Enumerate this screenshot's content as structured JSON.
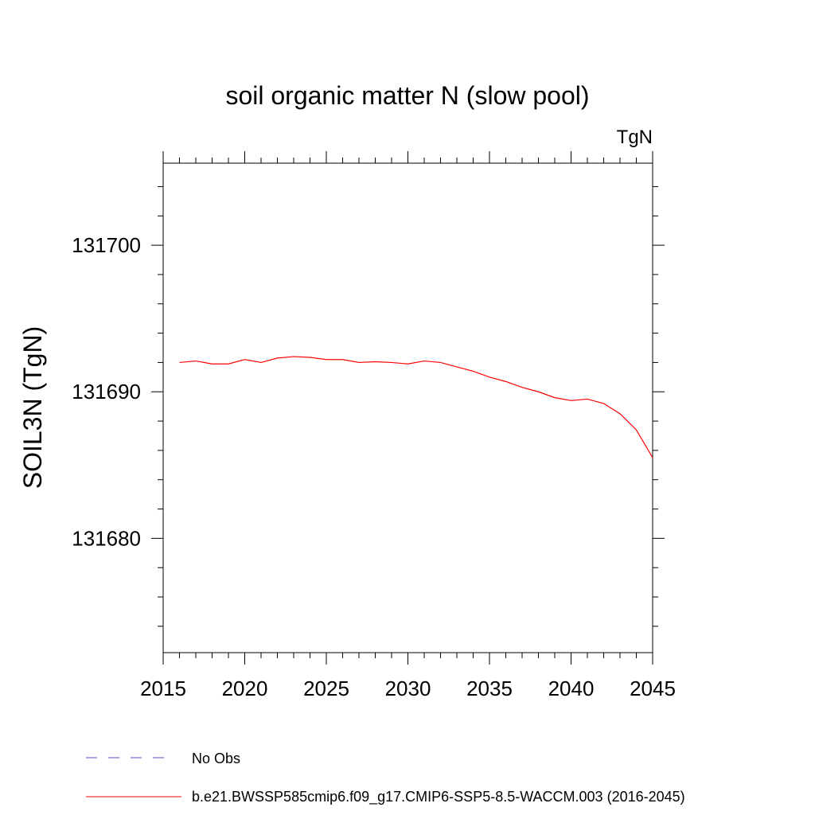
{
  "chart_data": {
    "type": "line",
    "title": "soil organic matter N (slow pool)",
    "units_label": "TgN",
    "ylabel": "SOIL3N  (TgN)",
    "xlabel": "",
    "xlim": [
      2015,
      2045
    ],
    "ylim": [
      131672.2,
      131705.6
    ],
    "x_ticks": [
      2015,
      2020,
      2025,
      2030,
      2035,
      2040,
      2045
    ],
    "x_tick_labels": [
      "2015",
      "2020",
      "2025",
      "2030",
      "2035",
      "2040",
      "2045"
    ],
    "x_minor_step": 1,
    "y_ticks": [
      131680,
      131690,
      131700
    ],
    "y_tick_labels": [
      "131680",
      "131690",
      "131700"
    ],
    "y_minor_step": 2,
    "series": [
      {
        "name": "No Obs",
        "style": "dashed",
        "color": "#5a4fcf",
        "x": [],
        "values": []
      },
      {
        "name": "b.e21.BWSSP585cmip6.f09_g17.CMIP6-SSP5-8.5-WACCM.003 (2016-2045)",
        "style": "solid",
        "color": "#ff0000",
        "x": [
          2016,
          2017,
          2018,
          2019,
          2020,
          2021,
          2022,
          2023,
          2024,
          2025,
          2026,
          2027,
          2028,
          2029,
          2030,
          2031,
          2032,
          2033,
          2034,
          2035,
          2036,
          2037,
          2038,
          2039,
          2040,
          2041,
          2042,
          2043,
          2044,
          2045
        ],
        "values": [
          131692.0,
          131692.1,
          131691.9,
          131691.9,
          131692.2,
          131692.0,
          131692.3,
          131692.4,
          131692.35,
          131692.2,
          131692.2,
          131692.0,
          131692.05,
          131692.0,
          131691.9,
          131692.1,
          131692.0,
          131691.7,
          131691.4,
          131691.0,
          131690.7,
          131690.3,
          131690.0,
          131689.6,
          131689.4,
          131689.5,
          131689.2,
          131688.5,
          131687.4,
          131685.5
        ]
      }
    ]
  }
}
